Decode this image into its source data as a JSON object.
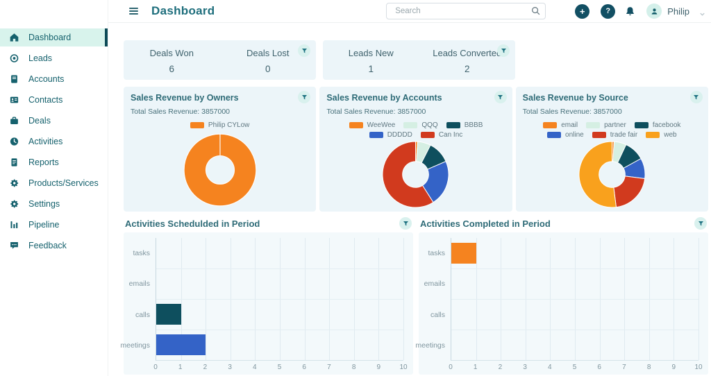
{
  "topbar": {
    "title": "Dashboard",
    "search_placeholder": "Search",
    "add_label": "+",
    "help_label": "?",
    "user": "Philip"
  },
  "sidebar": {
    "items": [
      {
        "label": "Dashboard",
        "icon": "home-icon",
        "active": true
      },
      {
        "label": "Leads",
        "icon": "leads-target-icon",
        "active": false
      },
      {
        "label": "Accounts",
        "icon": "accounts-book-icon",
        "active": false
      },
      {
        "label": "Contacts",
        "icon": "contacts-card-icon",
        "active": false
      },
      {
        "label": "Deals",
        "icon": "deals-briefcase-icon",
        "active": false
      },
      {
        "label": "Activities",
        "icon": "activities-clock-icon",
        "active": false
      },
      {
        "label": "Reports",
        "icon": "reports-doc-icon",
        "active": false
      },
      {
        "label": "Products/Services",
        "icon": "products-gear-icon",
        "active": false
      },
      {
        "label": "Settings",
        "icon": "settings-gear-icon",
        "active": false
      },
      {
        "label": "Pipeline",
        "icon": "pipeline-bars-icon",
        "active": false
      },
      {
        "label": "Feedback",
        "icon": "feedback-chat-icon",
        "active": false
      }
    ]
  },
  "kpi_cards": [
    {
      "metrics": [
        {
          "label": "Deals Won",
          "value": "6"
        },
        {
          "label": "Deals Lost",
          "value": "0"
        }
      ]
    },
    {
      "metrics": [
        {
          "label": "Leads New",
          "value": "1"
        },
        {
          "label": "Leads Converted",
          "value": "2"
        }
      ]
    }
  ],
  "colors": {
    "accent_teal": "#15616d",
    "active_bg": "#d8f3ec",
    "active_bar": "#0d4a57",
    "panel_bg": "#ecf5f9",
    "icon_circle": "#124f63",
    "orange": "#f5831f",
    "mint": "#d5efe3",
    "dark_teal": "#0e4f5e",
    "blue": "#3463c7",
    "red": "#d13a1e",
    "amber": "#f9a11d"
  },
  "chart_data": [
    {
      "type": "pie",
      "variant": "donut",
      "title": "Sales Revenue by Owners",
      "subtitle": "Total Sales Revenue: 3857000",
      "total_sales_revenue": 3857000,
      "labels": [
        "Philip CYLow"
      ],
      "values_pct": [
        100
      ],
      "colors": [
        "#f5831f"
      ],
      "legend_position": "top"
    },
    {
      "type": "pie",
      "variant": "donut",
      "title": "Sales Revenue by Accounts",
      "subtitle": "Total Sales Revenue: 3857000",
      "total_sales_revenue": 3857000,
      "labels": [
        "WeeWee",
        "QQQ",
        "BBBB",
        "DDDDD",
        "Can Inc"
      ],
      "values_pct": [
        1,
        6.5,
        11,
        22.5,
        59
      ],
      "colors": [
        "#f5831f",
        "#d5efe3",
        "#0e4f5e",
        "#3463c7",
        "#d13a1e"
      ],
      "legend_position": "top"
    },
    {
      "type": "pie",
      "variant": "donut",
      "title": "Sales Revenue by Source",
      "subtitle": "Total Sales Revenue: 3857000",
      "total_sales_revenue": 3857000,
      "labels": [
        "email",
        "partner",
        "facebook",
        "online",
        "trade fair",
        "web"
      ],
      "values_pct": [
        1,
        6,
        10,
        10,
        21,
        52
      ],
      "colors": [
        "#f5831f",
        "#d5efe3",
        "#0e4f5e",
        "#3463c7",
        "#d13a1e",
        "#f9a11d"
      ],
      "legend_position": "top"
    },
    {
      "type": "bar",
      "orientation": "horizontal",
      "title": "Activities Schedulded in Period",
      "categories": [
        "tasks",
        "emails",
        "calls",
        "meetings"
      ],
      "values": [
        0,
        0,
        1,
        2
      ],
      "colors": [
        "#f5831f",
        "#d5efe3",
        "#0e4f5e",
        "#3463c7"
      ],
      "xlim": [
        0,
        10
      ],
      "xticks": [
        0,
        1,
        2,
        3,
        4,
        5,
        6,
        7,
        8,
        9,
        10
      ],
      "grid": true
    },
    {
      "type": "bar",
      "orientation": "horizontal",
      "title": "Activities Completed in Period",
      "categories": [
        "tasks",
        "emails",
        "calls",
        "meetings"
      ],
      "values": [
        1,
        0,
        0,
        0
      ],
      "colors": [
        "#f5831f",
        "#d5efe3",
        "#0e4f5e",
        "#3463c7"
      ],
      "xlim": [
        0,
        10
      ],
      "xticks": [
        0,
        1,
        2,
        3,
        4,
        5,
        6,
        7,
        8,
        9,
        10
      ],
      "grid": true
    }
  ]
}
